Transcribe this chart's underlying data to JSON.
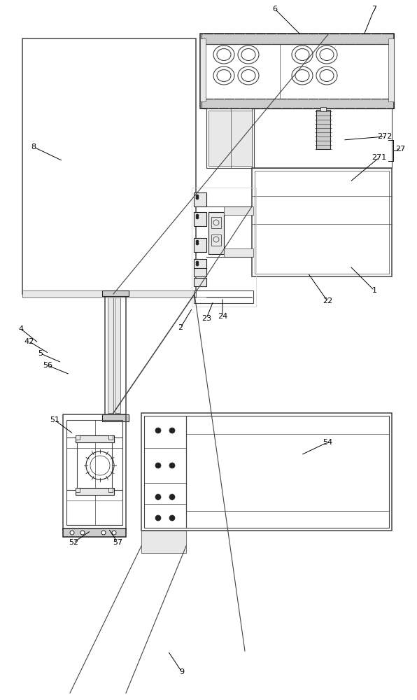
{
  "bg_color": "#ffffff",
  "lc": "#444444",
  "dk": "#222222",
  "gray1": "#cccccc",
  "gray2": "#e8e8e8",
  "gray3": "#aaaaaa",
  "figsize": [
    5.96,
    10.0
  ],
  "dpi": 100
}
